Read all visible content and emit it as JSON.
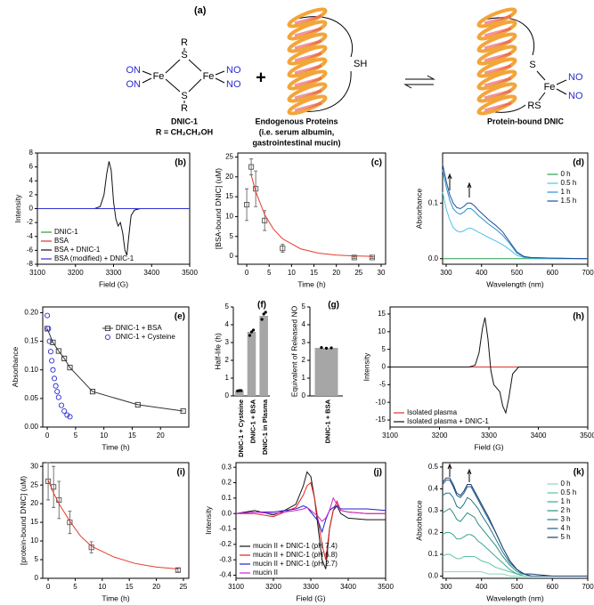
{
  "scheme": {
    "label": "(a)",
    "dnic": {
      "r1": "R",
      "s1": "S",
      "fe1": "Fe",
      "fe2": "Fe",
      "s2": "S",
      "r2": "R",
      "on1": "ON",
      "on2": "ON",
      "no1": "NO",
      "no2": "NO"
    },
    "name": "DNIC-1",
    "substituent": "R = CH₂CH₂OH",
    "plus": "+",
    "protein_sh": "SH",
    "protein_title": "Endogenous Proteins",
    "protein_note": [
      "(i.e. serum albumin,",
      "gastrointestinal mucin)"
    ],
    "product": {
      "s": "S",
      "fe": "Fe",
      "rs": "RS",
      "no1": "NO",
      "no2": "NO"
    },
    "product_name": "Protein-bound DNIC"
  },
  "chart_data": [
    {
      "type": "line",
      "panel_label": "(b)",
      "xlabel": "Field (G)",
      "ylabel": "Intensity",
      "xlim": [
        3100,
        3500
      ],
      "xticks": [
        3100,
        3200,
        3300,
        3400,
        3500
      ],
      "ylim": [
        -8,
        8
      ],
      "yticks": [
        -8,
        -6,
        -4,
        -2,
        0,
        2,
        4,
        6,
        8
      ],
      "legend": "bottom-left",
      "x": [
        3100,
        3250,
        3265,
        3275,
        3282,
        3288,
        3294,
        3300,
        3306,
        3312,
        3318,
        3324,
        3330,
        3335,
        3340,
        3346,
        3355,
        3370,
        3500
      ],
      "series": [
        {
          "name": "DNIC-1",
          "color": "#2ca02c",
          "values": [
            0,
            0,
            0,
            0,
            0,
            0,
            0,
            0,
            0,
            0,
            0,
            0,
            0,
            0,
            0,
            0,
            0,
            0,
            0
          ]
        },
        {
          "name": "BSA",
          "color": "#e03030",
          "values": [
            0,
            0,
            0,
            0,
            0,
            0,
            0,
            0,
            0,
            0,
            0,
            0,
            0,
            0,
            0,
            0,
            0,
            0,
            0
          ]
        },
        {
          "name": "BSA + DNIC-1",
          "color": "#111111",
          "values": [
            0,
            0,
            0.3,
            2,
            5,
            6.8,
            5.5,
            1,
            -1.5,
            -2.5,
            -2,
            -3.5,
            -6,
            -6.7,
            -4,
            -1,
            -0.2,
            0,
            0
          ]
        },
        {
          "name": "BSA (modified) + DNIC-1",
          "color": "#3030d0",
          "values": [
            0,
            0,
            0,
            0,
            0,
            0,
            0,
            0,
            0,
            0,
            0,
            0,
            0,
            0,
            0,
            0,
            0,
            0,
            0
          ]
        }
      ]
    },
    {
      "type": "scatter",
      "panel_label": "(c)",
      "xlabel": "Time (h)",
      "ylabel": "[BSA-bound DNIC] (uM)",
      "xlim": [
        -2,
        31
      ],
      "xticks": [
        0,
        5,
        10,
        15,
        20,
        25,
        30
      ],
      "ylim": [
        -2,
        26
      ],
      "yticks": [
        0,
        5,
        10,
        15,
        20,
        25
      ],
      "series": [
        {
          "color": "#555555",
          "marker": "square",
          "x": [
            0,
            1,
            2,
            4,
            8,
            24,
            28
          ],
          "values": [
            13,
            22.5,
            17,
            9,
            2,
            -0.3,
            -0.3
          ],
          "errors": [
            4,
            2,
            4.5,
            2.5,
            1,
            0.2,
            0.2
          ]
        },
        {
          "color": "#e8392b",
          "line": true,
          "x": [
            1,
            2,
            4,
            6,
            8,
            12,
            16,
            20,
            24,
            28
          ],
          "values": [
            20.5,
            16.3,
            10.5,
            6.8,
            4.4,
            1.9,
            0.8,
            0.3,
            0.1,
            0
          ]
        }
      ]
    },
    {
      "type": "line",
      "panel_label": "(d)",
      "xlabel": "Wavelength (nm)",
      "ylabel": "Absorbance",
      "xlim": [
        290,
        700
      ],
      "xticks": [
        300,
        400,
        500,
        600,
        700
      ],
      "ylim": [
        -0.01,
        0.19
      ],
      "yticks": [
        {
          "value": 0,
          "label": "0.0"
        },
        0.1
      ],
      "legend": "top-right",
      "x": [
        290,
        300,
        310,
        320,
        330,
        340,
        350,
        360,
        370,
        380,
        390,
        400,
        420,
        440,
        460,
        480,
        500,
        520,
        540,
        600,
        700
      ],
      "series": [
        {
          "name": "0 h",
          "color": "#2e9e4f",
          "values": [
            0,
            0,
            0,
            0,
            0,
            0,
            0,
            0,
            0,
            0,
            0,
            0,
            0,
            0,
            0,
            0,
            0,
            0,
            0,
            0,
            0
          ]
        },
        {
          "name": "0.5 h",
          "color": "#4fc3e8",
          "values": [
            0.12,
            0.09,
            0.07,
            0.056,
            0.05,
            0.048,
            0.05,
            0.054,
            0.055,
            0.052,
            0.048,
            0.045,
            0.038,
            0.032,
            0.025,
            0.016,
            0.006,
            0.002,
            0.001,
            0,
            0
          ]
        },
        {
          "name": "1 h",
          "color": "#2a8fd0",
          "values": [
            0.16,
            0.13,
            0.105,
            0.09,
            0.083,
            0.08,
            0.084,
            0.09,
            0.09,
            0.085,
            0.078,
            0.073,
            0.062,
            0.053,
            0.042,
            0.027,
            0.01,
            0.003,
            0.002,
            0.001,
            0
          ]
        },
        {
          "name": "1.5 h",
          "color": "#1f4f9a",
          "values": [
            0.17,
            0.14,
            0.115,
            0.1,
            0.092,
            0.09,
            0.094,
            0.1,
            0.1,
            0.095,
            0.088,
            0.082,
            0.07,
            0.06,
            0.048,
            0.03,
            0.012,
            0.004,
            0.002,
            0.001,
            0
          ]
        }
      ]
    },
    {
      "type": "scatter",
      "panel_label": "(e)",
      "xlabel": "Time (h)",
      "ylabel": "Absorbance",
      "xlim": [
        -0.8,
        25
      ],
      "xticks": [
        0,
        5,
        10,
        15,
        20
      ],
      "ylim": [
        0,
        0.21
      ],
      "yticks": [
        {
          "value": 0,
          "label": "0.00"
        },
        {
          "value": 0.05,
          "label": "0.05"
        },
        {
          "value": 0.1,
          "label": "0.10"
        },
        {
          "value": 0.15,
          "label": "0.15"
        },
        {
          "value": 0.2,
          "label": "0.20"
        }
      ],
      "legend": "top-right",
      "series": [
        {
          "name": "DNIC-1 + BSA",
          "color": "#333333",
          "marker": "square",
          "line": true,
          "x": [
            0,
            1,
            2,
            3,
            4,
            8,
            16,
            24
          ],
          "values": [
            0.172,
            0.148,
            0.133,
            0.12,
            0.104,
            0.062,
            0.039,
            0.028
          ]
        },
        {
          "name": "DNIC-1 + Cysteine",
          "color": "#2b2bd6",
          "marker": "circle",
          "x": [
            0,
            0.2,
            0.4,
            0.6,
            0.8,
            1,
            1.25,
            1.5,
            1.75,
            2,
            2.5,
            3,
            3.5,
            4
          ],
          "values": [
            0.195,
            0.172,
            0.15,
            0.132,
            0.116,
            0.1,
            0.085,
            0.072,
            0.062,
            0.052,
            0.038,
            0.028,
            0.021,
            0.018
          ]
        }
      ]
    },
    {
      "type": "bar",
      "panel_label": "(f)",
      "ylabel": "Half-life (h)",
      "ylim": [
        0,
        5
      ],
      "yticks": [
        0,
        1,
        2,
        3,
        4,
        5
      ],
      "color": "#a6a6a6",
      "categories": [
        "DNIC-1 + Cysteine",
        "DNIC-1 + BSA",
        "DNIC-1 in Plasma"
      ],
      "values": [
        0.3,
        3.6,
        4.5
      ],
      "replicates": [
        [
          0.28,
          0.3,
          0.3
        ],
        [
          3.4,
          3.6,
          3.7
        ],
        [
          4.3,
          4.6,
          4.7
        ]
      ]
    },
    {
      "type": "bar",
      "panel_label": "(g)",
      "ylabel": "Equivalent of Released NO",
      "ylim": [
        0,
        5
      ],
      "yticks": [
        0,
        1,
        2,
        3,
        4,
        5
      ],
      "color": "#a6a6a6",
      "categories": [
        "DNIC-1 + BSA"
      ],
      "values": [
        2.7
      ],
      "replicates": [
        [
          2.72,
          2.68,
          2.7
        ]
      ]
    },
    {
      "type": "line",
      "panel_label": "(h)",
      "xlabel": "Field (G)",
      "ylabel": "Intensity",
      "xlim": [
        3100,
        3500
      ],
      "xticks": [
        3100,
        3200,
        3300,
        3400,
        3500
      ],
      "ylim": [
        -17,
        17
      ],
      "yticks": [
        -15,
        -10,
        -5,
        0,
        5,
        10,
        15
      ],
      "legend": "bottom-left",
      "x": [
        3100,
        3260,
        3272,
        3280,
        3287,
        3292,
        3298,
        3304,
        3310,
        3316,
        3322,
        3328,
        3334,
        3340,
        3348,
        3360,
        3500
      ],
      "series": [
        {
          "name": "Isolated plasma",
          "color": "#e03030",
          "values": [
            0,
            0,
            0,
            0,
            0,
            0,
            0,
            0,
            0,
            0,
            0,
            0,
            0,
            0,
            0,
            0,
            0
          ]
        },
        {
          "name": "Isolated plasma + DNIC-1",
          "color": "#111111",
          "values": [
            0,
            0,
            0.5,
            4,
            11,
            14,
            8,
            -1,
            -5,
            -6,
            -7,
            -11,
            -13,
            -9,
            -2,
            0,
            0
          ]
        }
      ]
    },
    {
      "type": "scatter",
      "panel_label": "(i)",
      "xlabel": "Time (h)",
      "ylabel": "[protein-bound DNIC] (uM)",
      "xlim": [
        -1,
        26
      ],
      "xticks": [
        0,
        5,
        10,
        15,
        20,
        25
      ],
      "ylim": [
        0,
        31
      ],
      "yticks": [
        0,
        5,
        10,
        15,
        20,
        25,
        30
      ],
      "series": [
        {
          "color": "#555555",
          "marker": "square",
          "x": [
            0,
            1,
            2,
            4,
            8,
            24
          ],
          "values": [
            26,
            24.5,
            21,
            15,
            8.3,
            2.2
          ],
          "errors": [
            5,
            5.5,
            5,
            3,
            1.5,
            0.5
          ]
        },
        {
          "color": "#e8392b",
          "line": true,
          "x": [
            0,
            1,
            2,
            4,
            6,
            8,
            12,
            16,
            20,
            24
          ],
          "values": [
            26.3,
            22.9,
            20,
            15.3,
            11.3,
            8.6,
            5.8,
            4,
            3,
            2.5
          ]
        }
      ]
    },
    {
      "type": "line",
      "panel_label": "(j)",
      "xlabel": "Field (G)",
      "ylabel": "Intensity",
      "xlim": [
        3100,
        3500
      ],
      "xticks": [
        3100,
        3200,
        3300,
        3400,
        3500
      ],
      "ylim": [
        -0.42,
        0.33
      ],
      "yticks": [
        -0.4,
        -0.3,
        -0.2,
        -0.1,
        {
          "value": 0,
          "label": "0.0"
        },
        0.1,
        0.2,
        0.3
      ],
      "legend": "bottom-left",
      "x": [
        3100,
        3150,
        3200,
        3230,
        3260,
        3280,
        3290,
        3300,
        3310,
        3320,
        3330,
        3340,
        3350,
        3360,
        3370,
        3380,
        3400,
        3450,
        3500
      ],
      "series": [
        {
          "name": "mucin II + DNIC-1 (pH 7.4)",
          "color": "#111111",
          "values": [
            0,
            0.02,
            -0.01,
            0.02,
            0.06,
            0.18,
            0.27,
            0.24,
            0.1,
            -0.1,
            -0.3,
            -0.36,
            -0.1,
            0.02,
            0.05,
            0,
            -0.03,
            -0.04,
            -0.04
          ]
        },
        {
          "name": "mucin II + DNIC-1 (pH 6.8)",
          "color": "#e02020",
          "values": [
            0,
            0,
            -0.02,
            0.01,
            0.04,
            0.12,
            0.18,
            0.2,
            0.1,
            -0.05,
            -0.2,
            -0.3,
            -0.1,
            0.02,
            0.08,
            0.02,
            0.01,
            0,
            0
          ]
        },
        {
          "name": "mucin II + DNIC-1 (pH 2.7)",
          "color": "#2020d0",
          "values": [
            0,
            0.01,
            0.01,
            0.02,
            0.03,
            0.05,
            0.04,
            0.01,
            -0.02,
            -0.05,
            -0.12,
            -0.04,
            0.02,
            0.04,
            0.05,
            0.03,
            0.03,
            0.03,
            0.02
          ]
        },
        {
          "name": "mucin II",
          "color": "#d020d0",
          "values": [
            0,
            0.01,
            0,
            0.01,
            0.02,
            0.03,
            0.04,
            0.02,
            0,
            -0.02,
            -0.05,
            -0.03,
            0.02,
            0.1,
            0.06,
            0.02,
            0.01,
            0,
            0
          ]
        }
      ]
    },
    {
      "type": "line",
      "panel_label": "(k)",
      "xlabel": "Wavelength (nm)",
      "ylabel": "Absorbance",
      "xlim": [
        290,
        700
      ],
      "xticks": [
        300,
        400,
        500,
        600,
        700
      ],
      "ylim": [
        -0.01,
        0.52
      ],
      "yticks": [
        {
          "value": 0,
          "label": "0.0"
        },
        0.1,
        0.2,
        0.3,
        0.4,
        0.5
      ],
      "legend": "top-right",
      "x": [
        290,
        300,
        310,
        320,
        330,
        340,
        350,
        360,
        370,
        380,
        390,
        400,
        420,
        440,
        460,
        480,
        500,
        520,
        540,
        600,
        700
      ],
      "series": [
        {
          "name": "0 h",
          "color": "#8fd4c0",
          "values": [
            0.02,
            0.02,
            0.02,
            0.02,
            0.02,
            0.02,
            0.02,
            0.02,
            0.02,
            0.02,
            0.02,
            0.02,
            0.01,
            0.01,
            0.01,
            0,
            0,
            0,
            0,
            0,
            0
          ]
        },
        {
          "name": "0.5 h",
          "color": "#5cc0a8",
          "values": [
            0.09,
            0.1,
            0.1,
            0.09,
            0.08,
            0.08,
            0.09,
            0.09,
            0.09,
            0.09,
            0.08,
            0.07,
            0.06,
            0.04,
            0.03,
            0.02,
            0.01,
            0,
            0,
            0,
            0
          ]
        },
        {
          "name": "1 h",
          "color": "#3aa88f",
          "values": [
            0.19,
            0.2,
            0.2,
            0.19,
            0.17,
            0.17,
            0.18,
            0.19,
            0.19,
            0.18,
            0.16,
            0.15,
            0.12,
            0.09,
            0.06,
            0.03,
            0.01,
            0.01,
            0,
            0,
            0
          ]
        },
        {
          "name": "2 h",
          "color": "#2b8f86",
          "values": [
            0.29,
            0.3,
            0.31,
            0.29,
            0.26,
            0.25,
            0.27,
            0.29,
            0.28,
            0.27,
            0.24,
            0.22,
            0.18,
            0.14,
            0.09,
            0.05,
            0.02,
            0.01,
            0,
            0,
            0
          ]
        },
        {
          "name": "3 h",
          "color": "#23758a",
          "values": [
            0.37,
            0.38,
            0.38,
            0.36,
            0.32,
            0.31,
            0.33,
            0.36,
            0.35,
            0.33,
            0.31,
            0.28,
            0.23,
            0.17,
            0.11,
            0.06,
            0.03,
            0.01,
            0,
            0,
            0
          ]
        },
        {
          "name": "4 h",
          "color": "#1f5a8a",
          "values": [
            0.42,
            0.44,
            0.44,
            0.41,
            0.37,
            0.36,
            0.38,
            0.41,
            0.41,
            0.38,
            0.35,
            0.32,
            0.26,
            0.2,
            0.13,
            0.07,
            0.03,
            0.01,
            0,
            0,
            0
          ]
        },
        {
          "name": "5 h",
          "color": "#1b3f6e",
          "values": [
            0.43,
            0.45,
            0.45,
            0.42,
            0.38,
            0.37,
            0.39,
            0.42,
            0.42,
            0.39,
            0.36,
            0.33,
            0.27,
            0.2,
            0.13,
            0.07,
            0.03,
            0.01,
            0.01,
            0,
            0
          ]
        }
      ]
    }
  ]
}
